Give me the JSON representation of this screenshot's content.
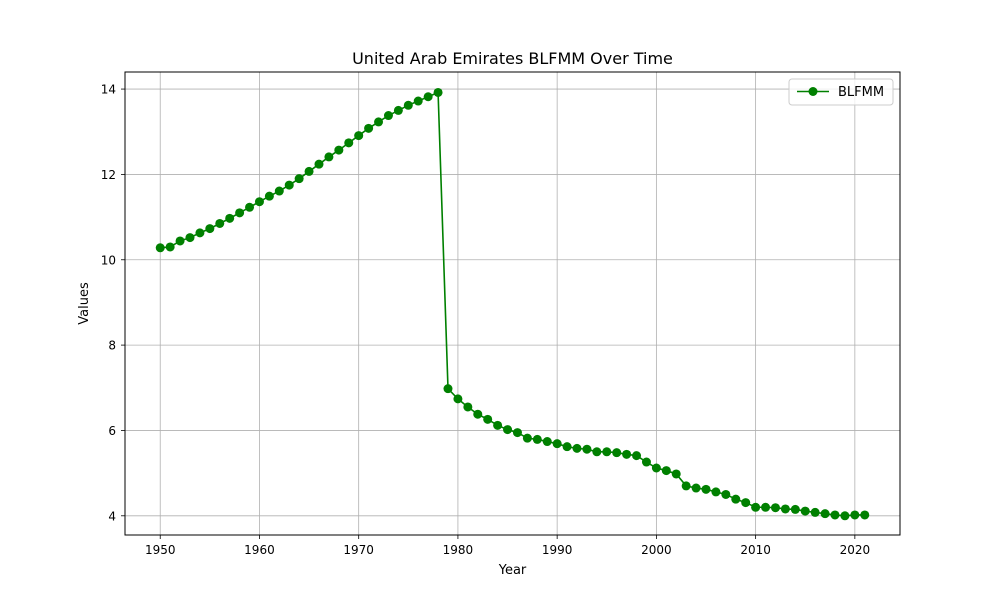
{
  "chart_data": {
    "type": "line",
    "title": "United Arab Emirates BLFMM Over Time",
    "xlabel": "Year",
    "ylabel": "Values",
    "xlim": [
      1946.45,
      2024.55
    ],
    "ylim": [
      3.55,
      14.4
    ],
    "xticks": [
      1950,
      1960,
      1970,
      1980,
      1990,
      2000,
      2010,
      2020
    ],
    "yticks": [
      4,
      6,
      8,
      10,
      12,
      14
    ],
    "grid": true,
    "legend_position": "top-right",
    "series": [
      {
        "name": "BLFMM",
        "color": "#008000",
        "marker": "circle",
        "x": [
          1950,
          1951,
          1952,
          1953,
          1954,
          1955,
          1956,
          1957,
          1958,
          1959,
          1960,
          1961,
          1962,
          1963,
          1964,
          1965,
          1966,
          1967,
          1968,
          1969,
          1970,
          1971,
          1972,
          1973,
          1974,
          1975,
          1976,
          1977,
          1978,
          1979,
          1980,
          1981,
          1982,
          1983,
          1984,
          1985,
          1986,
          1987,
          1988,
          1989,
          1990,
          1991,
          1992,
          1993,
          1994,
          1995,
          1996,
          1997,
          1998,
          1999,
          2000,
          2001,
          2002,
          2003,
          2004,
          2005,
          2006,
          2007,
          2008,
          2009,
          2010,
          2011,
          2012,
          2013,
          2014,
          2015,
          2016,
          2017,
          2018,
          2019,
          2020,
          2021
        ],
        "values": [
          10.28,
          10.3,
          10.44,
          10.52,
          10.63,
          10.73,
          10.85,
          10.97,
          11.1,
          11.23,
          11.36,
          11.49,
          11.61,
          11.75,
          11.9,
          12.07,
          12.24,
          12.41,
          12.57,
          12.74,
          12.91,
          13.08,
          13.23,
          13.38,
          13.5,
          13.62,
          13.72,
          13.82,
          13.92,
          6.98,
          6.74,
          6.55,
          6.38,
          6.26,
          6.12,
          6.02,
          5.95,
          5.82,
          5.79,
          5.74,
          5.69,
          5.62,
          5.58,
          5.56,
          5.5,
          5.5,
          5.48,
          5.44,
          5.41,
          5.26,
          5.12,
          5.06,
          4.98,
          4.7,
          4.65,
          4.62,
          4.56,
          4.5,
          4.39,
          4.31,
          4.2,
          4.2,
          4.19,
          4.16,
          4.15,
          4.11,
          4.08,
          4.05,
          4.02,
          4.0,
          4.02,
          4.02
        ]
      }
    ]
  }
}
